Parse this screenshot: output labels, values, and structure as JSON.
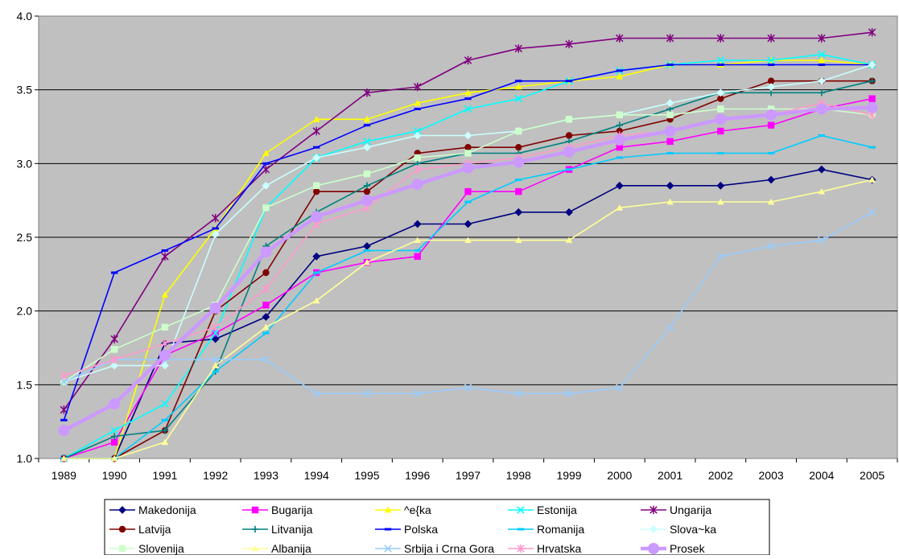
{
  "chart_data": {
    "type": "line",
    "title": "",
    "xlabel": "",
    "ylabel": "",
    "ylim": [
      1.0,
      4.0
    ],
    "yticks": [
      "1.0",
      "1.5",
      "2.0",
      "2.5",
      "3.0",
      "3.5",
      "4.0"
    ],
    "categories": [
      "1989",
      "1990",
      "1991",
      "1992",
      "1993",
      "1994",
      "1995",
      "1996",
      "1997",
      "1998",
      "1999",
      "2000",
      "2001",
      "2002",
      "2003",
      "2004",
      "2005"
    ],
    "grid": "horizontal",
    "legend_position": "bottom",
    "plot_background": "#c0c0c0",
    "series": [
      {
        "name": "Makedonija",
        "color": "#000080",
        "marker": "diamond",
        "values": [
          1.0,
          1.0,
          1.78,
          1.81,
          1.96,
          2.37,
          2.44,
          2.59,
          2.59,
          2.67,
          2.67,
          2.85,
          2.85,
          2.85,
          2.89,
          2.96,
          2.89
        ]
      },
      {
        "name": "Bugarija",
        "color": "#ff00ff",
        "marker": "square",
        "values": [
          1.0,
          1.11,
          1.7,
          1.85,
          2.04,
          2.26,
          2.33,
          2.37,
          2.81,
          2.81,
          2.96,
          3.11,
          3.15,
          3.22,
          3.26,
          3.37,
          3.44
        ]
      },
      {
        "name": "^e{ka",
        "color": "#ffff00",
        "marker": "triangle",
        "values": [
          1.0,
          1.0,
          2.11,
          2.56,
          3.07,
          3.3,
          3.3,
          3.41,
          3.48,
          3.52,
          3.56,
          3.59,
          3.67,
          3.67,
          3.7,
          3.7,
          3.67
        ]
      },
      {
        "name": "Estonija",
        "color": "#00ffff",
        "marker": "x",
        "values": [
          1.0,
          1.19,
          1.37,
          1.85,
          2.7,
          3.04,
          3.15,
          3.22,
          3.37,
          3.44,
          3.56,
          3.63,
          3.67,
          3.7,
          3.7,
          3.74,
          3.67
        ]
      },
      {
        "name": "Ungarija",
        "color": "#800080",
        "marker": "star",
        "values": [
          1.33,
          1.81,
          2.37,
          2.63,
          2.96,
          3.22,
          3.48,
          3.52,
          3.7,
          3.78,
          3.81,
          3.85,
          3.85,
          3.85,
          3.85,
          3.85,
          3.89
        ]
      },
      {
        "name": "Latvija",
        "color": "#800000",
        "marker": "circle",
        "values": [
          1.0,
          1.0,
          1.19,
          2.0,
          2.26,
          2.81,
          2.81,
          3.07,
          3.11,
          3.11,
          3.19,
          3.22,
          3.3,
          3.44,
          3.56,
          3.56,
          3.56
        ]
      },
      {
        "name": "Litvanija",
        "color": "#008080",
        "marker": "plus",
        "values": [
          1.0,
          1.15,
          1.19,
          1.59,
          2.44,
          2.67,
          2.85,
          3.0,
          3.07,
          3.07,
          3.15,
          3.26,
          3.37,
          3.48,
          3.48,
          3.48,
          3.56
        ]
      },
      {
        "name": "Polska",
        "color": "#0000ff",
        "marker": "dash",
        "values": [
          1.26,
          2.26,
          2.41,
          2.56,
          3.0,
          3.11,
          3.26,
          3.37,
          3.44,
          3.56,
          3.56,
          3.63,
          3.67,
          3.67,
          3.67,
          3.67,
          3.67
        ]
      },
      {
        "name": "Romanija",
        "color": "#00ccff",
        "marker": "dash",
        "values": [
          1.0,
          1.0,
          1.26,
          1.59,
          1.85,
          2.26,
          2.41,
          2.41,
          2.74,
          2.89,
          2.96,
          3.04,
          3.07,
          3.07,
          3.07,
          3.19,
          3.11
        ]
      },
      {
        "name": "Slova~ka",
        "color": "#ccffff",
        "marker": "diamond",
        "values": [
          1.52,
          1.63,
          1.63,
          2.52,
          2.85,
          3.04,
          3.11,
          3.19,
          3.19,
          3.22,
          3.3,
          3.33,
          3.41,
          3.48,
          3.52,
          3.56,
          3.67
        ]
      },
      {
        "name": "Slovenija",
        "color": "#ccffcc",
        "marker": "square",
        "values": [
          1.52,
          1.74,
          1.89,
          2.04,
          2.7,
          2.85,
          2.93,
          3.04,
          3.07,
          3.22,
          3.3,
          3.33,
          3.33,
          3.37,
          3.37,
          3.37,
          3.33
        ]
      },
      {
        "name": "Albanija",
        "color": "#ffff99",
        "marker": "triangle",
        "values": [
          1.0,
          1.0,
          1.11,
          1.63,
          1.89,
          2.07,
          2.33,
          2.48,
          2.48,
          2.48,
          2.48,
          2.7,
          2.74,
          2.74,
          2.74,
          2.81,
          2.89
        ]
      },
      {
        "name": "Srbija i Crna Gora",
        "color": "#99ccff",
        "marker": "x",
        "values": [
          1.52,
          1.67,
          1.67,
          1.67,
          1.67,
          1.44,
          1.44,
          1.44,
          1.48,
          1.44,
          1.44,
          1.48,
          1.89,
          2.37,
          2.44,
          2.48,
          2.67
        ]
      },
      {
        "name": "Hrvatska",
        "color": "#ff99cc",
        "marker": "star",
        "values": [
          1.56,
          1.67,
          1.78,
          1.89,
          2.15,
          2.59,
          2.7,
          2.96,
          3.0,
          3.04,
          3.11,
          3.19,
          3.22,
          3.3,
          3.33,
          3.41,
          3.33
        ]
      },
      {
        "name": "Prosek",
        "color": "#cc99ff",
        "marker": "circle",
        "thick": true,
        "values": [
          1.19,
          1.37,
          1.7,
          2.02,
          2.4,
          2.64,
          2.75,
          2.86,
          2.97,
          3.01,
          3.08,
          3.16,
          3.22,
          3.3,
          3.33,
          3.37,
          3.38
        ]
      }
    ]
  }
}
